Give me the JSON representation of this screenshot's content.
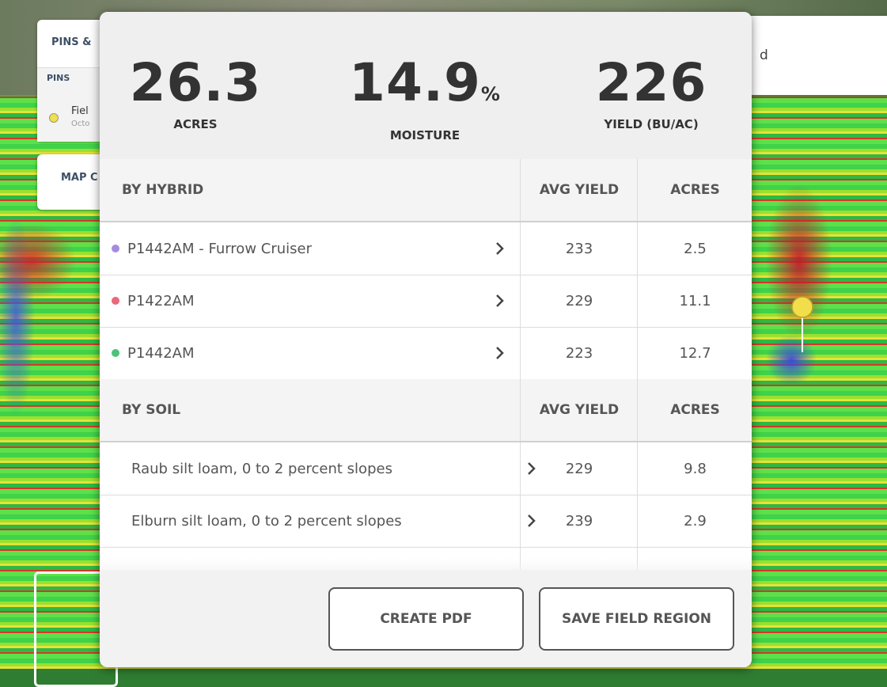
{
  "background_panel": {
    "title": "PINS &",
    "section": "PINS",
    "pin_name": "Fiel",
    "pin_date": "Octo",
    "map_button": "MAP C"
  },
  "right_panel_text": "d",
  "summary": [
    {
      "value": 26.3,
      "label": "ACRES"
    },
    {
      "value": 14.9,
      "unit": "%",
      "label": "MOISTURE"
    },
    {
      "value": 226,
      "label": "YIELD (BU/AC)"
    }
  ],
  "sections": [
    {
      "header": "BY HYBRID",
      "col1": "AVG YIELD",
      "col2": "ACRES",
      "rows": [
        {
          "color": "#a58be0",
          "name": "P1442AM - Furrow Cruiser",
          "avg_yield": 233,
          "acres": 2.5
        },
        {
          "color": "#e8697a",
          "name": "P1422AM",
          "avg_yield": 229,
          "acres": 11.1
        },
        {
          "color": "#4ec27a",
          "name": "P1442AM",
          "avg_yield": 223,
          "acres": 12.7
        }
      ]
    },
    {
      "header": "BY SOIL",
      "col1": "AVG YIELD",
      "col2": "ACRES",
      "rows": [
        {
          "name": "Raub silt loam, 0 to 2 percent slopes",
          "avg_yield": 229,
          "acres": 9.8
        },
        {
          "name": "Elburn silt loam, 0 to 2 percent slopes",
          "avg_yield": 239,
          "acres": 2.9
        }
      ]
    }
  ],
  "buttons": [
    "CREATE PDF",
    "SAVE FIELD REGION"
  ]
}
